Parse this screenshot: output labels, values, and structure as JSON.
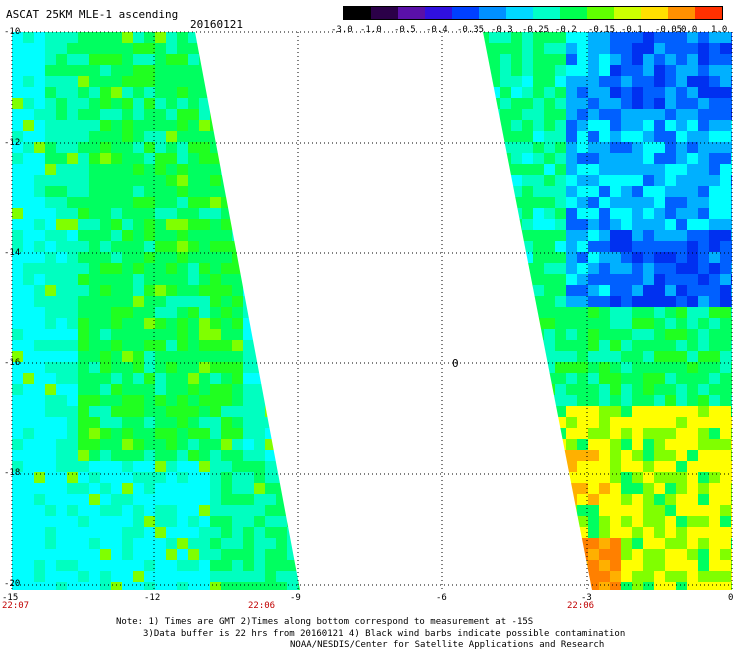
{
  "header": {
    "title": "ASCAT 25KM MLE-1 ascending",
    "date": "20160121"
  },
  "colorbar": {
    "labels": [
      "-3.0",
      "-1.0",
      "-0.5",
      "-0.4",
      "-0.35",
      "-0.3",
      "-0.25",
      "-0.2",
      "-0.15",
      "-0.1",
      "-0.05",
      "0.0",
      "1.0"
    ],
    "colors": [
      "#000000",
      "#2b0048",
      "#5a10a8",
      "#3010e0",
      "#0040ff",
      "#0090ff",
      "#00d8ff",
      "#00ffc8",
      "#00ff50",
      "#60ff00",
      "#ccff00",
      "#ffe000",
      "#ff9000",
      "#ff3000"
    ]
  },
  "map": {
    "lat_labels": [
      "-10",
      "-12",
      "-14",
      "-16",
      "-18",
      "-20"
    ],
    "lon_labels": [
      "-15",
      "-12",
      "-9",
      "-6",
      "-3",
      "0"
    ],
    "time_labels": [
      "22:07",
      "22:06",
      "22:06"
    ],
    "center_marker": "0",
    "colors": {
      "cyan": "#00ffff",
      "aqua": "#00ffc0",
      "green": "#00ff60",
      "light_green": "#20ff20",
      "lime": "#80ff00",
      "yellow": "#ffff00",
      "amber": "#ffb000",
      "orange": "#ff8000",
      "sky": "#00b0ff",
      "blue": "#0060ff",
      "deep_blue": "#0030f0"
    }
  },
  "notes": {
    "line1": "Note: 1) Times are GMT 2)Times along bottom correspond to measurement at -15S",
    "line2": "3)Data buffer is 22 hrs from 20160121 4) Black wind barbs indicate possible contamination",
    "line3": "NOAA/NESDIS/Center for Satellite Applications and Research"
  }
}
